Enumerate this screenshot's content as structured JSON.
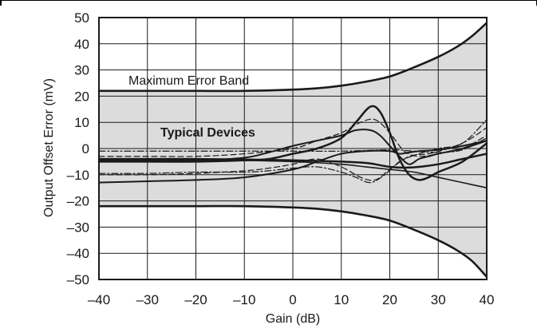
{
  "chart_data": {
    "type": "line",
    "title": "",
    "xlabel": "Gain (dB)",
    "ylabel": "Output Offset Error (mV)",
    "xlim": [
      -40,
      40
    ],
    "ylim": [
      -50,
      50
    ],
    "x_ticks": [
      "–40",
      "–30",
      "–20",
      "–10",
      "0",
      "10",
      "20",
      "30",
      "40"
    ],
    "y_ticks": [
      "50",
      "40",
      "30",
      "20",
      "10",
      "0",
      "–10",
      "–20",
      "–30",
      "–40",
      "–50"
    ],
    "grid": true,
    "colors": {
      "band_fill": "#dcdcdc",
      "line": "#1a1a1a",
      "grid": "#1a1a1a"
    },
    "annotations": {
      "max_band": "Maximum Error Band",
      "typical": "Typical Devices"
    },
    "band": {
      "upper": {
        "x": [
          -40,
          -30,
          -20,
          -10,
          0,
          5,
          10,
          15,
          20,
          25,
          30,
          34,
          37,
          40
        ],
        "y": [
          22,
          22,
          22,
          22,
          22.5,
          23,
          24,
          25.5,
          27.5,
          31,
          35,
          39,
          43,
          48
        ]
      },
      "lower": {
        "x": [
          -40,
          -30,
          -20,
          -10,
          0,
          5,
          10,
          15,
          20,
          25,
          30,
          34,
          37,
          40
        ],
        "y": [
          -22,
          -22,
          -22,
          -22,
          -22.5,
          -23,
          -24,
          -25.5,
          -27.5,
          -31,
          -35,
          -39,
          -43,
          -49
        ]
      }
    },
    "series": [
      {
        "style": "solid",
        "width": 2.5,
        "x": [
          -40,
          -30,
          -20,
          -10,
          0,
          10,
          15,
          17,
          20,
          23,
          26,
          30,
          35,
          40
        ],
        "y": [
          -4,
          -4,
          -4,
          -4.2,
          -4.5,
          -5,
          -5.5,
          -6,
          -7,
          -7.3,
          -7,
          -6,
          -4,
          -2
        ]
      },
      {
        "style": "solid",
        "width": 2.5,
        "x": [
          -40,
          -30,
          -20,
          -10,
          -5,
          0,
          5,
          10,
          13,
          16,
          18,
          20,
          22,
          24,
          26,
          28,
          30,
          35,
          40
        ],
        "y": [
          -5,
          -5,
          -5,
          -4.5,
          -4,
          -2,
          0,
          4,
          10,
          16,
          14,
          6,
          -4,
          -10,
          -12,
          -11,
          -9,
          -5,
          2
        ]
      },
      {
        "style": "solid",
        "width": 2,
        "x": [
          -40,
          -30,
          -20,
          -10,
          -5,
          0,
          5,
          10,
          13,
          16,
          18,
          20,
          22,
          24,
          26,
          28,
          30,
          35,
          40
        ],
        "y": [
          -4.5,
          -4.5,
          -4.5,
          -3.5,
          -1.5,
          1,
          3,
          5,
          7,
          7,
          5,
          1,
          -3,
          -6,
          -4,
          -3,
          -2,
          0,
          3
        ]
      },
      {
        "style": "solid",
        "width": 2,
        "x": [
          -40,
          -30,
          -20,
          -10,
          0,
          5,
          10,
          15,
          20,
          22,
          24,
          26,
          30,
          35,
          40
        ],
        "y": [
          -13,
          -12.5,
          -12,
          -11,
          -8,
          -5,
          -2,
          -1,
          -1,
          -2,
          -1.5,
          -1,
          -0.5,
          1,
          3
        ]
      },
      {
        "style": "solid",
        "width": 1.6,
        "x": [
          -40,
          -30,
          -20,
          -10,
          0,
          10,
          15,
          20,
          25,
          30,
          35,
          40
        ],
        "y": [
          -4,
          -4,
          -4.2,
          -4.5,
          -5,
          -6,
          -7,
          -8,
          -9,
          -11,
          -13,
          -15
        ]
      },
      {
        "style": "dashed",
        "width": 1.2,
        "x": [
          -40,
          -30,
          -20,
          -10,
          0,
          5,
          10,
          14,
          17,
          20,
          23,
          26,
          30,
          35,
          40
        ],
        "y": [
          -3,
          -3,
          -3,
          -2,
          0,
          3,
          6,
          10,
          11,
          6,
          -1,
          -3,
          -2,
          0,
          5
        ]
      },
      {
        "style": "dashed",
        "width": 1.2,
        "x": [
          -40,
          -30,
          -20,
          -10,
          -5,
          0,
          5,
          10,
          14,
          17,
          20,
          24,
          28,
          32,
          36,
          40
        ],
        "y": [
          -10,
          -10,
          -9.5,
          -8.5,
          -7.5,
          -6,
          -4,
          -7,
          -11,
          -12,
          -8,
          -3,
          -2,
          0,
          3,
          8
        ]
      },
      {
        "style": "dashdot",
        "width": 1.2,
        "x": [
          -40,
          -30,
          -20,
          -10,
          0,
          10,
          20,
          25,
          30,
          35,
          40
        ],
        "y": [
          -1,
          -1,
          -1,
          -1,
          -1,
          -1,
          -0.5,
          -1,
          -1.5,
          -0.5,
          4
        ]
      },
      {
        "style": "dashdot",
        "width": 1.2,
        "x": [
          -40,
          -30,
          -20,
          -10,
          -5,
          0,
          5,
          10,
          13,
          16,
          19,
          22,
          26,
          30,
          35,
          40
        ],
        "y": [
          -9.5,
          -9.5,
          -9,
          -9,
          -8.5,
          -7.5,
          -7,
          -9,
          -11,
          -13,
          -10,
          -5,
          -2,
          0,
          2,
          11
        ]
      }
    ]
  }
}
